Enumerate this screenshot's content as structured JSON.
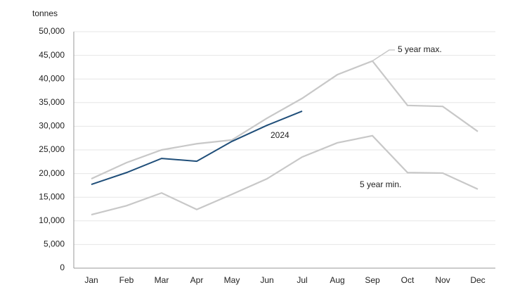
{
  "chart_data": {
    "type": "line",
    "y_label": "tonnes",
    "categories": [
      "Jan",
      "Feb",
      "Mar",
      "Apr",
      "May",
      "Jun",
      "Jul",
      "Aug",
      "Sep",
      "Oct",
      "Nov",
      "Dec"
    ],
    "series": [
      {
        "name": "5 year max.",
        "color": "#c8c8c8",
        "values": [
          18900,
          22300,
          25000,
          26300,
          27100,
          31700,
          35900,
          40900,
          43800,
          34400,
          34200,
          28900
        ]
      },
      {
        "name": "5 year min.",
        "color": "#c8c8c8",
        "values": [
          11300,
          13200,
          15900,
          12400,
          15600,
          18900,
          23500,
          26500,
          28000,
          20200,
          20100,
          16700
        ]
      },
      {
        "name": "2024",
        "color": "#1f4e79",
        "values": [
          17700,
          20200,
          23200,
          22600,
          26800,
          30200,
          33200,
          null,
          null,
          null,
          null,
          null
        ]
      }
    ],
    "ylim": [
      0,
      50000
    ],
    "yticks": [
      0,
      {
        "value": 5000,
        "label": "5,000"
      },
      {
        "value": 10000,
        "label": "10,000"
      },
      {
        "value": 15000,
        "label": "15,000"
      },
      {
        "value": 20000,
        "label": "20,000"
      },
      {
        "value": 25000,
        "label": "25,000"
      },
      {
        "value": 30000,
        "label": "30,000"
      },
      {
        "value": 35000,
        "label": "35,000"
      },
      {
        "value": 40000,
        "label": "40,000"
      },
      {
        "value": 45000,
        "label": "45,000"
      },
      {
        "value": 50000,
        "label": "50,000"
      }
    ],
    "grid": true
  }
}
